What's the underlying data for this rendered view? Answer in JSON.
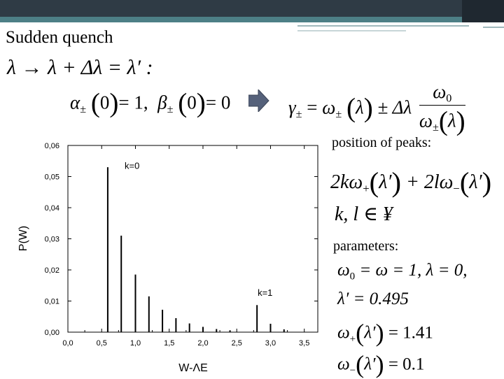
{
  "slide": {
    "title": "Sudden quench",
    "eq_quench": {
      "lhs": "λ → λ + Δλ = λ′ :"
    },
    "eq_initial": {
      "alpha": "α",
      "beta": "β",
      "pm": "±",
      "arg": "0",
      "one": "= 1,",
      "zero": "= 0"
    },
    "eq_gamma": {
      "gamma": "γ",
      "pm": "±",
      "omega": "ω",
      "lambda": "λ",
      "mid": "± Δλ",
      "num": "ω",
      "num_sub": "0",
      "den": "ω",
      "den_sub": "±"
    },
    "peaks_label": "position of peaks:",
    "peaks_eq": {
      "part1": "2kω",
      "sub1": "+",
      "part2": "+ 2lω",
      "sub2": "−",
      "arg": "λ′"
    },
    "kl_eq": "k, l ∈ ¥",
    "params_label": "parameters:",
    "params": {
      "line1a": "ω",
      "line1a_sub": "0",
      "line1b": " = ω = 1,  λ = 0,",
      "line2": "λ′ = 0.495",
      "line3_omega": "ω",
      "line3_sub": "+",
      "line3_arg": "λ′",
      "line3_val": "= 1.41",
      "line4_omega": "ω",
      "line4_sub": "−",
      "line4_arg": "λ′",
      "line4_val": "= 0.1"
    }
  },
  "chart_data": {
    "type": "bar",
    "xlabel": "W-ΛE",
    "ylabel": "P(W)",
    "xlim": [
      0.0,
      3.7
    ],
    "ylim": [
      0.0,
      0.06
    ],
    "xticks": [
      0.0,
      0.5,
      1.0,
      1.5,
      2.0,
      2.5,
      3.0,
      3.5
    ],
    "xtick_labels": [
      "0,0",
      "0,5",
      "1,0",
      "1,5",
      "2,0",
      "2,5",
      "3,0",
      "3,5"
    ],
    "yticks": [
      0.0,
      0.01,
      0.02,
      0.03,
      0.04,
      0.05,
      0.06
    ],
    "ytick_labels": [
      "0,00",
      "0,01",
      "0,02",
      "0,03",
      "0,04",
      "0,05",
      "0,06"
    ],
    "x": [
      0.59,
      0.79,
      1.0,
      1.2,
      1.4,
      1.6,
      1.8,
      2.0,
      2.2,
      2.4,
      2.8,
      3.0,
      3.2
    ],
    "values": [
      0.053,
      0.031,
      0.0185,
      0.0115,
      0.0072,
      0.0045,
      0.0028,
      0.0017,
      0.001,
      0.0006,
      0.0087,
      0.0027,
      0.0009
    ],
    "annotations": [
      {
        "text": "k=0",
        "x": 0.95,
        "y": 0.0525
      },
      {
        "text": "k=1",
        "x": 2.92,
        "y": 0.0117
      }
    ]
  }
}
